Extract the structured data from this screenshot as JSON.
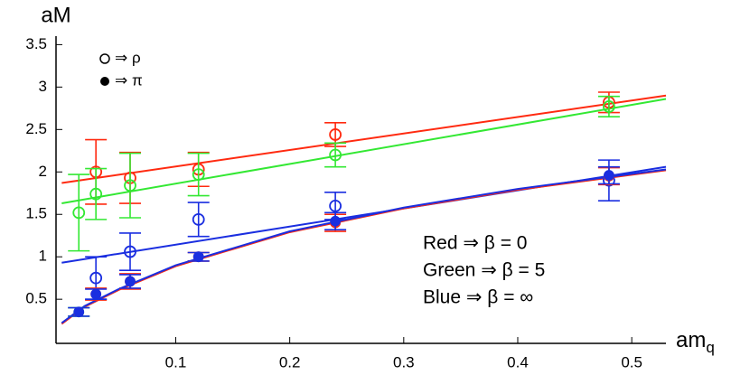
{
  "chart_data": {
    "type": "scatter",
    "y_label": "aM",
    "x_label": {
      "text": "am",
      "sub": "q"
    },
    "marker_legend": [
      "⇒ ρ",
      "⇒ π"
    ],
    "notes": [
      "Red ⇒ β = 0",
      "Green ⇒ β = 5",
      "Blue ⇒ β = ∞"
    ],
    "xlim": [
      -0.005,
      0.53
    ],
    "ylim": [
      -0.02,
      3.6
    ],
    "xticks": [
      0.1,
      0.2,
      0.3,
      0.4,
      0.5
    ],
    "yticks": [
      0.5,
      1,
      1.5,
      2,
      2.5,
      3,
      3.5
    ],
    "grid": false,
    "series": [
      {
        "color": "#ff2a10",
        "marker": "open",
        "x": [
          0.03,
          0.06,
          0.12,
          0.24,
          0.48
        ],
        "values": [
          2.0,
          1.93,
          2.03,
          2.44,
          2.82
        ],
        "errors": [
          0.38,
          0.3,
          0.2,
          0.14,
          0.12
        ]
      },
      {
        "color": "#33e833",
        "marker": "open",
        "x": [
          0.015,
          0.03,
          0.06,
          0.12,
          0.24,
          0.48
        ],
        "values": [
          1.52,
          1.74,
          1.84,
          1.97,
          2.2,
          2.77
        ],
        "errors": [
          0.45,
          0.3,
          0.38,
          0.25,
          0.14,
          0.12
        ]
      },
      {
        "color": "#1a2ee0",
        "marker": "open",
        "x": [
          0.03,
          0.06,
          0.12,
          0.24,
          0.48
        ],
        "values": [
          0.75,
          1.06,
          1.44,
          1.6,
          1.9
        ],
        "errors": [
          0.25,
          0.22,
          0.2,
          0.16,
          0.24
        ]
      },
      {
        "color": "#ff2a10",
        "marker": "filled",
        "x": [
          0.03,
          0.06,
          0.12,
          0.24,
          0.48
        ],
        "values": [
          0.56,
          0.71,
          1.0,
          1.4,
          1.95
        ],
        "errors": [
          0.07,
          0.09,
          0.05,
          0.1,
          0.1
        ]
      },
      {
        "color": "#33e833",
        "marker": "filled",
        "x": [
          0.015
        ],
        "values": [
          0.35
        ],
        "errors": [
          0.05
        ]
      },
      {
        "color": "#1a2ee0",
        "marker": "filled",
        "x": [
          0.015,
          0.03,
          0.06,
          0.12,
          0.24,
          0.48
        ],
        "values": [
          0.35,
          0.56,
          0.71,
          1.0,
          1.42,
          1.96
        ],
        "errors": [
          0.05,
          0.06,
          0.08,
          0.05,
          0.1,
          0.1
        ]
      }
    ],
    "fits": [
      {
        "color": "#ff2a10",
        "x": [
          0,
          0.53
        ],
        "values": [
          1.87,
          2.9
        ]
      },
      {
        "color": "#33e833",
        "x": [
          0,
          0.53
        ],
        "values": [
          1.63,
          2.86
        ]
      },
      {
        "color": "#1a2ee0",
        "x": [
          0,
          0.53
        ],
        "values": [
          0.93,
          2.06
        ]
      },
      {
        "color": "#ff2a10",
        "x": [
          0,
          0.02,
          0.05,
          0.1,
          0.2,
          0.3,
          0.4,
          0.53
        ],
        "values": [
          0.21,
          0.41,
          0.61,
          0.89,
          1.29,
          1.57,
          1.79,
          2.02
        ]
      },
      {
        "color": "#1a2ee0",
        "x": [
          0,
          0.02,
          0.05,
          0.1,
          0.2,
          0.3,
          0.4,
          0.53
        ],
        "values": [
          0.22,
          0.42,
          0.62,
          0.9,
          1.3,
          1.58,
          1.8,
          2.03
        ]
      }
    ]
  }
}
